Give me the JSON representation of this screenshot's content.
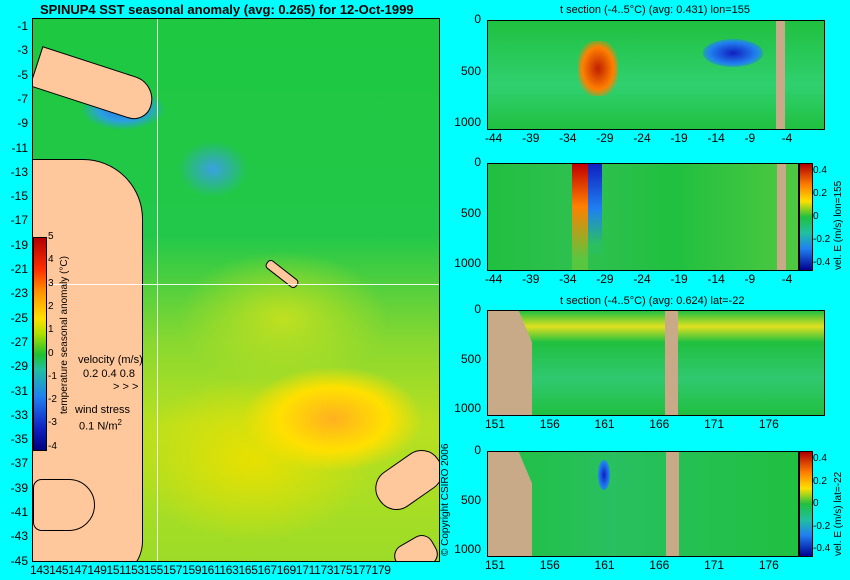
{
  "main_title": "SPINUP4 SST seasonal anomaly (avg: 0.265) for 12-Oct-1999",
  "map": {
    "lat_labels": [
      "-1",
      "-3",
      "-5",
      "-7",
      "-9",
      "-11",
      "-13",
      "-15",
      "-17",
      "-19",
      "-21",
      "-23",
      "-25",
      "-27",
      "-29",
      "-31",
      "-33",
      "-35",
      "-37",
      "-39",
      "-41",
      "-43",
      "-45"
    ],
    "lon_labels": "143145147149151153155157159161163165167169171173175177179",
    "colorbar_ticks": [
      "5",
      "4",
      "3",
      "2",
      "1",
      "0",
      "-1",
      "-2",
      "-3",
      "-4"
    ],
    "colorbar_label": "temperature seasonal anomaly (°C)",
    "velocity_label": "velocity (m/s)",
    "velocity_scale": "0.2 0.4 0.8",
    "wind_label": "wind stress",
    "wind_scale": "0.1 N/m",
    "wind_exp": "2",
    "copyright": "© Copyright CSIRO 2006"
  },
  "panels": [
    {
      "title": "t section (-4..5°C) (avg: 0.431) lon=155",
      "y_ticks": [
        "0",
        "500",
        "1000"
      ],
      "x_ticks": [
        "-44",
        "-39",
        "-34",
        "-29",
        "-24",
        "-19",
        "-14",
        "-9",
        "-4"
      ]
    },
    {
      "title": "",
      "y_ticks": [
        "0",
        "500",
        "1000"
      ],
      "x_ticks": [
        "-44",
        "-39",
        "-34",
        "-29",
        "-24",
        "-19",
        "-14",
        "-9",
        "-4"
      ],
      "cbar_ticks": [
        "0.4",
        "0.2",
        "0",
        "-0.2",
        "-0.4"
      ],
      "cbar_label": "vel. E (m/s) lon=155"
    },
    {
      "title": "t section (-4..5°C) (avg: 0.624) lat=-22",
      "y_ticks": [
        "0",
        "500",
        "1000"
      ],
      "x_ticks": [
        "151",
        "156",
        "161",
        "166",
        "171",
        "176"
      ]
    },
    {
      "title": "",
      "y_ticks": [
        "0",
        "500",
        "1000"
      ],
      "x_ticks": [
        "151",
        "156",
        "161",
        "166",
        "171",
        "176"
      ],
      "cbar_ticks": [
        "0.4",
        "0.2",
        "0",
        "-0.2",
        "-0.4"
      ],
      "cbar_label": "vel. E (m/s) lat=-22"
    }
  ]
}
